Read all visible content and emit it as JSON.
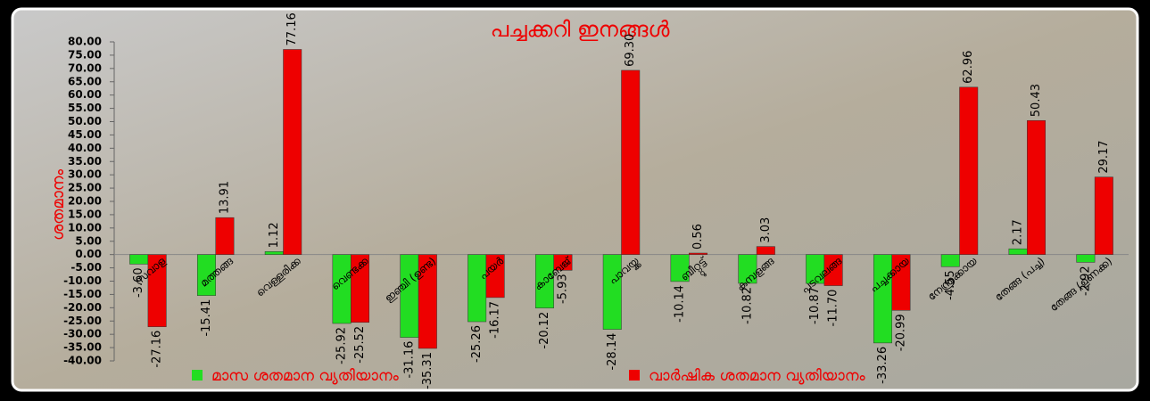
{
  "chart_data": {
    "type": "bar",
    "title": "പച്ചക്കറി ഇനങ്ങൾ",
    "y_label": "ശതമാനം",
    "categories": [
      "സവാള",
      "മത്തങ്ങ",
      "വെള്ളരിക്ക",
      "വെണ്ടക്ക",
      "ഇഞ്ചി (ഉണ്ട)",
      "പയർ",
      "കാബേജ്",
      "പാവയ്ക്ക",
      "ബീറ്റ്റൂട്ട്",
      "കുമ്പളങ്ങ",
      "പടവലങ്ങ",
      "പച്ചക്കായ",
      "നേന്ത്രക്കായ",
      "തേങ്ങ (പച്ച)",
      "തേങ്ങ (ഉണക്ക)"
    ],
    "series": [
      {
        "name": "മാസ ശതമാന വ്യതിയാനം",
        "color": "#22dd22",
        "values": [
          -3.6,
          -15.41,
          1.12,
          -25.92,
          -31.16,
          -25.26,
          -20.12,
          -28.14,
          -10.14,
          -10.82,
          -10.87,
          -33.26,
          -4.55,
          2.17,
          -2.92
        ],
        "value_labels": [
          "-3.60",
          "-15.41",
          "1.12",
          "-25.92",
          "-31.16",
          "-25.26",
          "-20.12",
          "-28.14",
          "-10.14",
          "-10.82",
          "-10.87",
          "-33.26",
          "-4.55",
          "2.17",
          "-2.92"
        ]
      },
      {
        "name": "വാർഷിക ശതമാന വ്യതിയാനം",
        "color": "#ee0000",
        "values": [
          -27.16,
          13.91,
          77.16,
          -25.52,
          -35.31,
          -16.17,
          -5.93,
          69.3,
          0.56,
          3.03,
          -11.7,
          -20.99,
          62.96,
          50.43,
          29.17
        ],
        "value_labels": [
          "-27.16",
          "13.91",
          "77.16",
          "-25.52",
          "-35.31",
          "-16.17",
          "-5.93",
          "69.30",
          "0.56",
          "3.03",
          "-11.70",
          "-20.99",
          "62.96",
          "50.43",
          "29.17"
        ]
      }
    ],
    "ylim": [
      -40,
      80
    ],
    "yticks": [
      {
        "value": -40,
        "label": "-40.00"
      },
      {
        "value": -35,
        "label": "-35.00"
      },
      {
        "value": -30,
        "label": "-30.00"
      },
      {
        "value": -25,
        "label": "-25.00"
      },
      {
        "value": -20,
        "label": "-20.00"
      },
      {
        "value": -15,
        "label": "-15.00"
      },
      {
        "value": -10,
        "label": "-10.00"
      },
      {
        "value": -5,
        "label": "-5.00"
      },
      {
        "value": 0,
        "label": "0.00"
      },
      {
        "value": 5,
        "label": "5.00"
      },
      {
        "value": 10,
        "label": "10.00"
      },
      {
        "value": 15,
        "label": "15.00"
      },
      {
        "value": 20,
        "label": "20.00"
      },
      {
        "value": 25,
        "label": "25.00"
      },
      {
        "value": 30,
        "label": "30.00"
      },
      {
        "value": 35,
        "label": "35.00"
      },
      {
        "value": 40,
        "label": "40.00"
      },
      {
        "value": 45,
        "label": "45.00"
      },
      {
        "value": 50,
        "label": "50.00"
      },
      {
        "value": 55,
        "label": "55.00"
      },
      {
        "value": 60,
        "label": "60.00"
      },
      {
        "value": 65,
        "label": "65.00"
      },
      {
        "value": 70,
        "label": "70.00"
      },
      {
        "value": 75,
        "label": "75.00"
      },
      {
        "value": 80,
        "label": "80.00"
      }
    ],
    "legend": "bottom"
  }
}
